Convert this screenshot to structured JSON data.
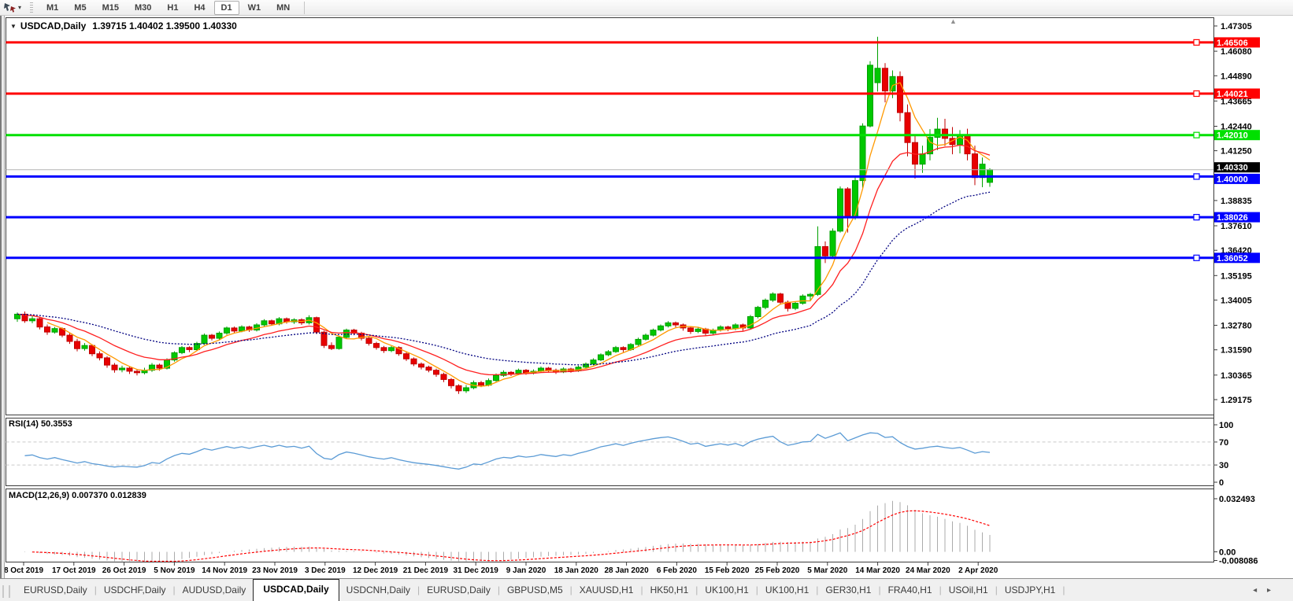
{
  "toolbar": {
    "timeframes": [
      "M1",
      "M5",
      "M15",
      "M30",
      "H1",
      "H4",
      "D1",
      "W1",
      "MN"
    ],
    "active_timeframe": "D1"
  },
  "icons": {
    "title_dropdown": "▼",
    "dropdown": "▾",
    "scroll_marker": "▲"
  },
  "chart_title": {
    "symbol_period": "USDCAD,Daily",
    "ohlc_text": "1.39715 1.40402 1.39500 1.40330"
  },
  "panels": {
    "rsi_label": "RSI(14) 50.3553",
    "macd_label": "MACD(12,26,9) 0.007370 0.012839"
  },
  "tabs": {
    "separator": "|",
    "left_arrow": "◂",
    "right_arrow": "▸",
    "active_index": 3,
    "items": [
      "EURUSD,Daily",
      "USDCHF,Daily",
      "AUDUSD,Daily",
      "USDCAD,Daily",
      "USDCNH,Daily",
      "EURUSD,Daily",
      "GBPUSD,M5",
      "XAUUSD,H1",
      "HK50,H1",
      "UK100,H1",
      "UK100,H1",
      "GER30,H1",
      "FRA40,H1",
      "USOil,H1",
      "USDJPY,H1"
    ]
  },
  "chart_data": {
    "type": "candlestick",
    "symbol": "USDCAD",
    "timeframe": "Daily",
    "last_bar_ohlc": {
      "open": 1.39715,
      "high": 1.40402,
      "low": 1.395,
      "close": 1.4033
    },
    "y_ticks": [
      "1.47305",
      "1.46080",
      "1.44890",
      "1.43665",
      "1.42440",
      "1.41250",
      "1.38835",
      "1.37610",
      "1.36420",
      "1.35195",
      "1.34005",
      "1.32780",
      "1.31590",
      "1.30365",
      "1.29175"
    ],
    "x_ticks": [
      "8 Oct 2019",
      "17 Oct 2019",
      "26 Oct 2019",
      "5 Nov 2019",
      "14 Nov 2019",
      "23 Nov 2019",
      "3 Dec 2019",
      "12 Dec 2019",
      "21 Dec 2019",
      "31 Dec 2019",
      "9 Jan 2020",
      "18 Jan 2020",
      "28 Jan 2020",
      "6 Feb 2020",
      "15 Feb 2020",
      "25 Feb 2020",
      "5 Mar 2020",
      "14 Mar 2020",
      "24 Mar 2020",
      "2 Apr 2020"
    ],
    "colors": {
      "bull": "#00C800",
      "bull_border": "#00A000",
      "bear": "#E80000",
      "bear_border": "#C00000"
    },
    "moving_averages": [
      {
        "name": "fast",
        "period": 5,
        "method": "sma",
        "color": "#FF9900",
        "dashed": false
      },
      {
        "name": "mid",
        "period": 13,
        "method": "ema",
        "color": "#FF2020",
        "dashed": false
      },
      {
        "name": "slow",
        "period": 34,
        "method": "ema",
        "color": "#000080",
        "dashed": true
      }
    ],
    "horizontal_lines": [
      {
        "price": 1.46506,
        "label": "1.46506",
        "color": "#FF0000",
        "badge_dy": 0
      },
      {
        "price": 1.44021,
        "label": "1.44021",
        "color": "#FF0000",
        "badge_dy": 0
      },
      {
        "price": 1.4201,
        "label": "1.42010",
        "color": "#00E000",
        "badge_dy": 0
      },
      {
        "price": 1.4,
        "label": "1.40000",
        "color": "#0000FF",
        "badge_dy": 3
      },
      {
        "price": 1.38026,
        "label": "1.38026",
        "color": "#0000FF",
        "badge_dy": 0
      },
      {
        "price": 1.36052,
        "label": "1.36052",
        "color": "#0000FF",
        "badge_dy": 0
      }
    ],
    "current_price": {
      "price": 1.4033,
      "label": "1.40330",
      "line_color": "#b4b4b4",
      "badge_color": "#000000",
      "badge_dy": -3
    },
    "rsi": {
      "period": 14,
      "last_value": 50.3553,
      "levels": [
        70,
        30
      ],
      "axis_labels": [
        "100",
        "70",
        "30",
        "0"
      ],
      "color": "#5B9BD5"
    },
    "macd": {
      "fast": 12,
      "slow": 26,
      "signal": 9,
      "main_value": 0.00737,
      "signal_value": 0.012839,
      "axis_labels": [
        "0.032493",
        "0.00",
        "-0.008086"
      ],
      "histogram_color": "#ABABAB",
      "signal_color": "#FF0000"
    },
    "candles": [
      [
        1.331,
        1.334,
        1.3295,
        1.3332
      ],
      [
        1.3332,
        1.3345,
        1.329,
        1.33
      ],
      [
        1.33,
        1.3322,
        1.3288,
        1.331
      ],
      [
        1.331,
        1.3318,
        1.3258,
        1.327
      ],
      [
        1.327,
        1.3282,
        1.3232,
        1.3245
      ],
      [
        1.3245,
        1.327,
        1.3238,
        1.3262
      ],
      [
        1.3262,
        1.3268,
        1.322,
        1.323
      ],
      [
        1.323,
        1.3242,
        1.3188,
        1.32
      ],
      [
        1.32,
        1.3212,
        1.3152,
        1.3165
      ],
      [
        1.3165,
        1.3192,
        1.3155,
        1.318
      ],
      [
        1.318,
        1.3186,
        1.3128,
        1.314
      ],
      [
        1.314,
        1.3152,
        1.3108,
        1.312
      ],
      [
        1.312,
        1.3128,
        1.3072,
        1.3085
      ],
      [
        1.3085,
        1.3095,
        1.3048,
        1.3062
      ],
      [
        1.3062,
        1.3082,
        1.305,
        1.307
      ],
      [
        1.307,
        1.3078,
        1.3042,
        1.3055
      ],
      [
        1.3055,
        1.3066,
        1.3035,
        1.3048
      ],
      [
        1.3048,
        1.3072,
        1.304,
        1.306
      ],
      [
        1.306,
        1.3095,
        1.3052,
        1.3085
      ],
      [
        1.3085,
        1.3092,
        1.3058,
        1.307
      ],
      [
        1.307,
        1.3118,
        1.3064,
        1.311
      ],
      [
        1.311,
        1.3152,
        1.3102,
        1.3145
      ],
      [
        1.3145,
        1.3178,
        1.3138,
        1.317
      ],
      [
        1.317,
        1.3176,
        1.3148,
        1.316
      ],
      [
        1.316,
        1.3198,
        1.3154,
        1.319
      ],
      [
        1.319,
        1.3238,
        1.3184,
        1.323
      ],
      [
        1.323,
        1.3236,
        1.3205,
        1.3215
      ],
      [
        1.3215,
        1.3248,
        1.3208,
        1.324
      ],
      [
        1.324,
        1.3272,
        1.3232,
        1.3265
      ],
      [
        1.3265,
        1.3272,
        1.3242,
        1.325
      ],
      [
        1.325,
        1.3278,
        1.3244,
        1.327
      ],
      [
        1.327,
        1.3276,
        1.3246,
        1.3255
      ],
      [
        1.3255,
        1.3288,
        1.3248,
        1.328
      ],
      [
        1.328,
        1.3308,
        1.3272,
        1.33
      ],
      [
        1.33,
        1.3306,
        1.3276,
        1.3285
      ],
      [
        1.3285,
        1.3318,
        1.3278,
        1.331
      ],
      [
        1.331,
        1.3316,
        1.3286,
        1.3295
      ],
      [
        1.3295,
        1.3312,
        1.3285,
        1.3305
      ],
      [
        1.3305,
        1.3312,
        1.328,
        1.329
      ],
      [
        1.329,
        1.3327,
        1.3282,
        1.3315
      ],
      [
        1.3315,
        1.332,
        1.3235,
        1.3245
      ],
      [
        1.3245,
        1.3252,
        1.3168,
        1.318
      ],
      [
        1.318,
        1.3195,
        1.3158,
        1.3165
      ],
      [
        1.3165,
        1.3228,
        1.316,
        1.322
      ],
      [
        1.322,
        1.3262,
        1.3214,
        1.3255
      ],
      [
        1.3255,
        1.3261,
        1.323,
        1.324
      ],
      [
        1.324,
        1.3247,
        1.3205,
        1.3215
      ],
      [
        1.3215,
        1.3222,
        1.318,
        1.319
      ],
      [
        1.319,
        1.3198,
        1.316,
        1.317
      ],
      [
        1.317,
        1.3178,
        1.3144,
        1.3155
      ],
      [
        1.3155,
        1.3178,
        1.3148,
        1.317
      ],
      [
        1.317,
        1.3176,
        1.313,
        1.314
      ],
      [
        1.314,
        1.3148,
        1.3105,
        1.3115
      ],
      [
        1.3115,
        1.3122,
        1.308,
        1.309
      ],
      [
        1.309,
        1.3098,
        1.3064,
        1.3075
      ],
      [
        1.3075,
        1.3082,
        1.305,
        1.306
      ],
      [
        1.306,
        1.3068,
        1.3028,
        1.304
      ],
      [
        1.304,
        1.3048,
        1.3002,
        1.3015
      ],
      [
        1.3015,
        1.3022,
        1.2972,
        1.2985
      ],
      [
        1.2985,
        1.2992,
        1.2945,
        1.296
      ],
      [
        1.296,
        1.2988,
        1.295,
        1.2975
      ],
      [
        1.2975,
        1.301,
        1.2968,
        1.3
      ],
      [
        1.3,
        1.3008,
        1.2978,
        1.2988
      ],
      [
        1.2988,
        1.302,
        1.2982,
        1.301
      ],
      [
        1.301,
        1.3044,
        1.3004,
        1.3035
      ],
      [
        1.3035,
        1.306,
        1.3028,
        1.305
      ],
      [
        1.305,
        1.3056,
        1.3032,
        1.3042
      ],
      [
        1.3042,
        1.3068,
        1.3036,
        1.306
      ],
      [
        1.306,
        1.3066,
        1.3038,
        1.3048
      ],
      [
        1.3048,
        1.3064,
        1.304,
        1.3055
      ],
      [
        1.3055,
        1.3078,
        1.3048,
        1.307
      ],
      [
        1.307,
        1.3076,
        1.305,
        1.306
      ],
      [
        1.306,
        1.3068,
        1.3042,
        1.3052
      ],
      [
        1.3052,
        1.3074,
        1.3046,
        1.3066
      ],
      [
        1.3066,
        1.3072,
        1.3048,
        1.3058
      ],
      [
        1.3058,
        1.3082,
        1.3052,
        1.3075
      ],
      [
        1.3075,
        1.3098,
        1.3068,
        1.309
      ],
      [
        1.309,
        1.3118,
        1.3084,
        1.311
      ],
      [
        1.311,
        1.3142,
        1.3104,
        1.3135
      ],
      [
        1.3135,
        1.3158,
        1.3128,
        1.315
      ],
      [
        1.315,
        1.3178,
        1.3144,
        1.317
      ],
      [
        1.317,
        1.3176,
        1.3148,
        1.316
      ],
      [
        1.316,
        1.3192,
        1.3154,
        1.3185
      ],
      [
        1.3185,
        1.3218,
        1.3178,
        1.321
      ],
      [
        1.321,
        1.3238,
        1.3204,
        1.323
      ],
      [
        1.323,
        1.3262,
        1.3224,
        1.3255
      ],
      [
        1.3255,
        1.3282,
        1.3248,
        1.3275
      ],
      [
        1.3275,
        1.3298,
        1.3268,
        1.329
      ],
      [
        1.329,
        1.3296,
        1.3268,
        1.328
      ],
      [
        1.328,
        1.3287,
        1.3252,
        1.3265
      ],
      [
        1.3265,
        1.3272,
        1.3236,
        1.3248
      ],
      [
        1.3248,
        1.3268,
        1.324,
        1.326
      ],
      [
        1.326,
        1.3266,
        1.3228,
        1.324
      ],
      [
        1.324,
        1.3262,
        1.3232,
        1.3255
      ],
      [
        1.3255,
        1.3278,
        1.3248,
        1.327
      ],
      [
        1.327,
        1.3276,
        1.325,
        1.3262
      ],
      [
        1.3262,
        1.3288,
        1.3254,
        1.328
      ],
      [
        1.328,
        1.3286,
        1.3252,
        1.3265
      ],
      [
        1.3265,
        1.3328,
        1.3258,
        1.332
      ],
      [
        1.332,
        1.3372,
        1.3312,
        1.3365
      ],
      [
        1.3365,
        1.3408,
        1.3356,
        1.34
      ],
      [
        1.34,
        1.3438,
        1.3392,
        1.343
      ],
      [
        1.343,
        1.3436,
        1.3378,
        1.339
      ],
      [
        1.339,
        1.3398,
        1.3345,
        1.336
      ],
      [
        1.336,
        1.3392,
        1.3352,
        1.3385
      ],
      [
        1.3385,
        1.3428,
        1.3378,
        1.342
      ],
      [
        1.342,
        1.3435,
        1.3398,
        1.3428
      ],
      [
        1.3428,
        1.3758,
        1.342,
        1.366
      ],
      [
        1.366,
        1.3685,
        1.358,
        1.3615
      ],
      [
        1.3615,
        1.3748,
        1.3608,
        1.3735
      ],
      [
        1.3735,
        1.3952,
        1.3728,
        1.394
      ],
      [
        1.394,
        1.3948,
        1.3728,
        1.38
      ],
      [
        1.38,
        1.3995,
        1.379,
        1.398
      ],
      [
        1.398,
        1.4258,
        1.3945,
        1.4245
      ],
      [
        1.4245,
        1.456,
        1.4238,
        1.454
      ],
      [
        1.4455,
        1.4678,
        1.4412,
        1.4525
      ],
      [
        1.4525,
        1.455,
        1.436,
        1.4415
      ],
      [
        1.4415,
        1.4515,
        1.438,
        1.4485
      ],
      [
        1.4485,
        1.451,
        1.4268,
        1.431
      ],
      [
        1.431,
        1.435,
        1.4098,
        1.4165
      ],
      [
        1.4165,
        1.42,
        1.399,
        1.406
      ],
      [
        1.406,
        1.415,
        1.4018,
        1.411
      ],
      [
        1.411,
        1.423,
        1.4078,
        1.419
      ],
      [
        1.419,
        1.4285,
        1.4128,
        1.423
      ],
      [
        1.423,
        1.428,
        1.4148,
        1.4185
      ],
      [
        1.4185,
        1.424,
        1.4108,
        1.4155
      ],
      [
        1.4155,
        1.4225,
        1.4112,
        1.42
      ],
      [
        1.42,
        1.4232,
        1.4078,
        1.411
      ],
      [
        1.411,
        1.415,
        1.3958,
        1.3995
      ],
      [
        1.3995,
        1.4092,
        1.3948,
        1.406
      ],
      [
        1.39715,
        1.40402,
        1.395,
        1.4033
      ]
    ]
  }
}
